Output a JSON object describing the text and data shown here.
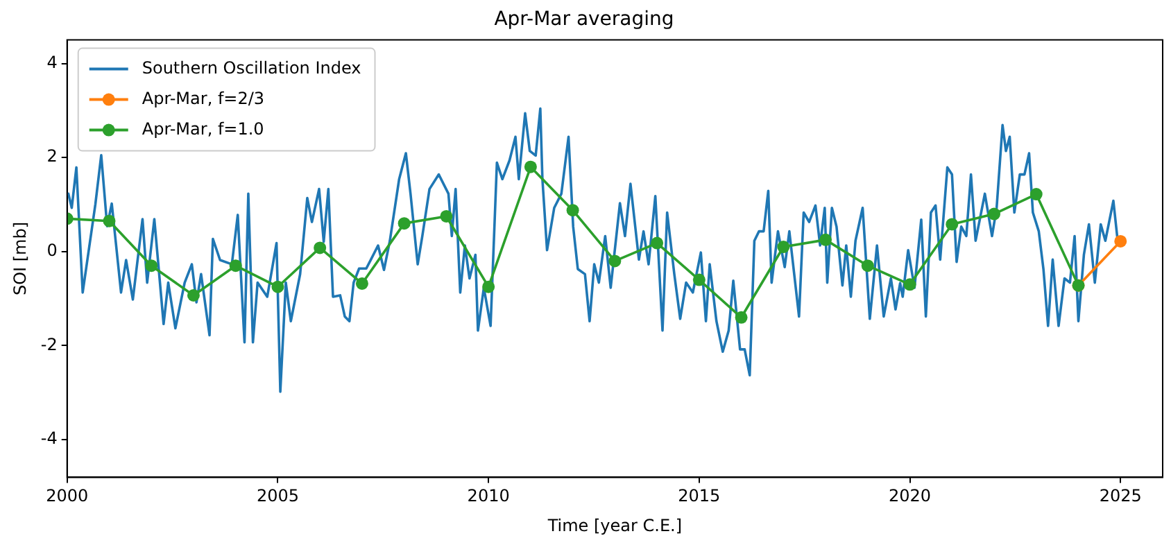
{
  "chart_data": {
    "type": "line",
    "title": "Apr-Mar averaging",
    "xlabel": "Time [year C.E.]",
    "ylabel": "SOI [mb]",
    "xlim": [
      2000,
      2026
    ],
    "xticks": [
      2000,
      2005,
      2010,
      2015,
      2020,
      2025
    ],
    "ylim": [
      -4.8,
      4.5
    ],
    "yticks": [
      -4,
      -2,
      0,
      2,
      4
    ],
    "grid": false,
    "legend": "top left",
    "series": [
      {
        "name": "Southern Oscillation Index",
        "color": "#1f77b4",
        "marker": "none",
        "x": [
          2000.03,
          2000.11,
          2000.22,
          2000.37,
          2000.67,
          2000.81,
          2000.95,
          2001.06,
          2001.28,
          2001.4,
          2001.56,
          2001.79,
          2001.9,
          2002.07,
          2002.29,
          2002.4,
          2002.57,
          2002.79,
          2002.96,
          2003.07,
          2003.18,
          2003.38,
          2003.46,
          2003.63,
          2003.91,
          2004.05,
          2004.21,
          2004.3,
          2004.41,
          2004.52,
          2004.75,
          2004.97,
          2005.06,
          2005.19,
          2005.31,
          2005.53,
          2005.7,
          2005.81,
          2005.98,
          2006.09,
          2006.2,
          2006.31,
          2006.48,
          2006.59,
          2006.7,
          2006.8,
          2006.93,
          2007.1,
          2007.21,
          2007.38,
          2007.52,
          2007.66,
          2007.88,
          2008.04,
          2008.15,
          2008.32,
          2008.43,
          2008.6,
          2008.82,
          2009.05,
          2009.13,
          2009.22,
          2009.33,
          2009.44,
          2009.55,
          2009.69,
          2009.75,
          2009.89,
          2010.05,
          2010.2,
          2010.33,
          2010.5,
          2010.64,
          2010.72,
          2010.87,
          2010.98,
          2011.12,
          2011.23,
          2011.28,
          2011.39,
          2011.56,
          2011.73,
          2011.9,
          2012.01,
          2012.12,
          2012.29,
          2012.4,
          2012.51,
          2012.62,
          2012.77,
          2012.9,
          2013.12,
          2013.24,
          2013.37,
          2013.57,
          2013.68,
          2013.8,
          2013.96,
          2014.13,
          2014.24,
          2014.41,
          2014.55,
          2014.69,
          2014.85,
          2015.04,
          2015.16,
          2015.25,
          2015.41,
          2015.56,
          2015.7,
          2015.81,
          2015.97,
          2016.08,
          2016.2,
          2016.31,
          2016.42,
          2016.53,
          2016.64,
          2016.72,
          2016.87,
          2017.03,
          2017.14,
          2017.37,
          2017.48,
          2017.61,
          2017.76,
          2017.87,
          2017.98,
          2018.04,
          2018.15,
          2018.26,
          2018.4,
          2018.49,
          2018.6,
          2018.71,
          2018.88,
          2019.05,
          2019.22,
          2019.38,
          2019.55,
          2019.66,
          2019.77,
          2019.83,
          2019.96,
          2020.11,
          2020.27,
          2020.38,
          2020.5,
          2020.61,
          2020.72,
          2020.89,
          2021.0,
          2021.11,
          2021.22,
          2021.34,
          2021.45,
          2021.56,
          2021.67,
          2021.78,
          2021.95,
          2022.06,
          2022.2,
          2022.28,
          2022.37,
          2022.48,
          2022.61,
          2022.72,
          2022.83,
          2022.92,
          2023.06,
          2023.17,
          2023.28,
          2023.39,
          2023.53,
          2023.67,
          2023.8,
          2023.91,
          2024.0,
          2024.13,
          2024.25,
          2024.39,
          2024.53,
          2024.64,
          2024.83,
          2024.92
        ],
        "values": [
          1.23,
          0.93,
          1.79,
          -0.87,
          1.0,
          2.05,
          0.54,
          1.02,
          -0.87,
          -0.18,
          -1.02,
          0.69,
          -0.66,
          0.69,
          -1.54,
          -0.66,
          -1.63,
          -0.66,
          -0.27,
          -1.08,
          -0.48,
          -1.78,
          0.27,
          -0.18,
          -0.27,
          0.78,
          -1.93,
          1.23,
          -1.93,
          -0.66,
          -0.96,
          0.18,
          -2.98,
          -0.66,
          -1.48,
          -0.48,
          1.14,
          0.63,
          1.33,
          0.21,
          1.33,
          -0.96,
          -0.93,
          -1.38,
          -1.48,
          -0.66,
          -0.36,
          -0.36,
          -0.17,
          0.13,
          -0.39,
          0.23,
          1.54,
          2.09,
          1.23,
          -0.27,
          0.33,
          1.33,
          1.64,
          1.23,
          0.33,
          1.33,
          -0.87,
          0.13,
          -0.57,
          -0.07,
          -1.68,
          -0.77,
          -1.58,
          1.89,
          1.54,
          1.94,
          2.44,
          1.54,
          2.94,
          2.14,
          2.04,
          3.04,
          1.54,
          0.03,
          0.93,
          1.23,
          2.44,
          0.53,
          -0.37,
          -0.48,
          -1.48,
          -0.27,
          -0.66,
          0.33,
          -0.77,
          1.03,
          0.33,
          1.44,
          -0.17,
          0.43,
          -0.27,
          1.18,
          -1.68,
          0.83,
          -0.48,
          -1.43,
          -0.66,
          -0.87,
          -0.02,
          -1.48,
          -0.27,
          -1.48,
          -2.13,
          -1.68,
          -0.62,
          -2.08,
          -2.08,
          -2.63,
          0.23,
          0.43,
          0.43,
          1.29,
          -0.66,
          0.43,
          -0.33,
          0.43,
          -1.38,
          0.83,
          0.63,
          0.98,
          0.13,
          0.93,
          -0.66,
          0.93,
          0.53,
          -0.72,
          0.13,
          -0.96,
          0.23,
          0.93,
          -1.43,
          0.13,
          -1.38,
          -0.57,
          -1.23,
          -0.67,
          -0.96,
          0.03,
          -0.77,
          0.68,
          -1.38,
          0.83,
          0.98,
          -0.17,
          1.79,
          1.64,
          -0.22,
          0.53,
          0.33,
          1.64,
          0.23,
          0.73,
          1.23,
          0.33,
          0.93,
          2.69,
          2.14,
          2.44,
          0.83,
          1.64,
          1.64,
          2.09,
          0.83,
          0.43,
          -0.37,
          -1.58,
          -0.17,
          -1.58,
          -0.57,
          -0.66,
          0.33,
          -1.48,
          -0.07,
          0.58,
          -0.66,
          0.58,
          0.23,
          1.08,
          0.33
        ]
      },
      {
        "name": "Apr-Mar, f=2/3",
        "color": "#ff7f0e",
        "marker": "circle",
        "x": [
          2024,
          2025
        ],
        "values": [
          -0.72,
          0.22
        ]
      },
      {
        "name": "Apr-Mar, f=1.0",
        "color": "#2ca02c",
        "marker": "circle",
        "x": [
          2000,
          2001,
          2002,
          2003,
          2004,
          2005,
          2006,
          2007,
          2008,
          2009,
          2010,
          2011,
          2012,
          2013,
          2014,
          2015,
          2016,
          2017,
          2018,
          2019,
          2020,
          2021,
          2022,
          2023,
          2024
        ],
        "values": [
          0.7,
          0.65,
          -0.3,
          -0.93,
          -0.3,
          -0.75,
          0.08,
          -0.68,
          0.6,
          0.75,
          -0.75,
          1.8,
          0.88,
          -0.2,
          0.18,
          -0.6,
          -1.4,
          0.1,
          0.25,
          -0.3,
          -0.7,
          0.58,
          0.8,
          1.22,
          -0.72
        ]
      }
    ]
  }
}
